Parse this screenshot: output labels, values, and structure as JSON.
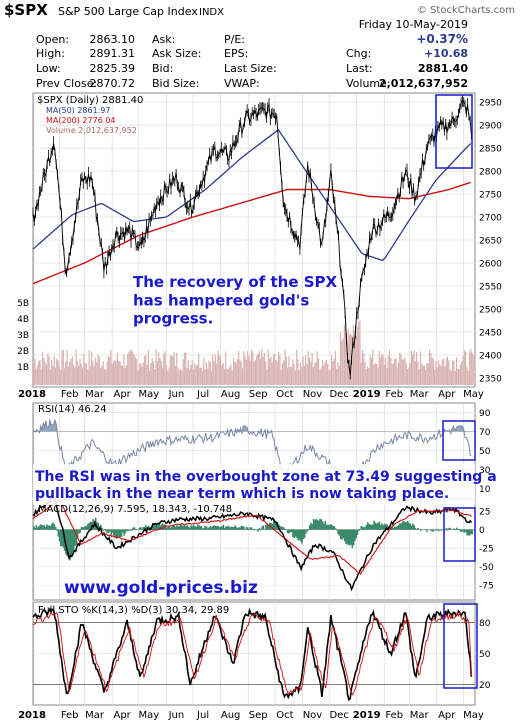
{
  "header": {
    "symbol": "$SPX",
    "name": "S&P 500 Large Cap Index",
    "exchange": "INDX",
    "watermark": "© StockCharts.com",
    "date": "Friday  10-May-2019",
    "change_pct": "+0.37%"
  },
  "quote": {
    "open_label": "Open:",
    "open": "2863.10",
    "high_label": "High:",
    "high": "2891.31",
    "low_label": "Low:",
    "low": "2825.39",
    "prev_label": "Prev Close:",
    "prev": "2870.72",
    "ask_label": "Ask:",
    "ask": "",
    "asksize_label": "Ask Size:",
    "asksize": "",
    "bid_label": "Bid:",
    "bid": "",
    "bidsize_label": "Bid Size:",
    "bidsize": "",
    "pe_label": "P/E:",
    "pe": "",
    "eps_label": "EPS:",
    "eps": "",
    "lastsize_label": "Last Size:",
    "lastsize": "",
    "vwap_label": "VWAP:",
    "vwap": "",
    "chg_label": "Chg:",
    "chg": "+10.68",
    "last_label": "Last:",
    "last": "2881.40",
    "volume_label": "Volume:",
    "volume": "2,012,637,952"
  },
  "legend": {
    "price": "$SPX (Daily) 2881.40",
    "ma50": "MA(50) 2861.97",
    "ma200": "MA(200) 2776.04",
    "volume": "Volume 2,012,637,952"
  },
  "annotations": {
    "price_note": "The recovery of the SPX\nhas hampered gold's\nprogress.",
    "rsi_note": "The RSI was in the overbought zone at 73.49 suggesting a\npullback in the near term which is now taking place.",
    "website": "www.gold-prices.biz"
  },
  "indicators": {
    "rsi_label": "RSI(14) 46.24",
    "macd_label": "MACD(12,26,9) 7.595, 18.343, -10.748",
    "sto_label": "Full STO %K(14,3) %D(3) 30.34, 29.89"
  },
  "colors": {
    "price": "#000000",
    "ma50": "#2d3a8c",
    "ma200": "#cc1111",
    "volume": "#d9b2b2",
    "rsi": "#7c86a8",
    "macd_signal": "#cc1111",
    "histogram": "#3a8a6c",
    "annotation_text": "#1a1acc",
    "box": "#1a1acc"
  },
  "chart_data": [
    {
      "type": "line",
      "title": "$SPX (Daily) 2881.40",
      "x_months": [
        "2018",
        "Feb",
        "Mar",
        "Apr",
        "May",
        "Jun",
        "Jul",
        "Aug",
        "Sep",
        "Oct",
        "Nov",
        "Dec",
        "2019",
        "Feb",
        "Mar",
        "Apr",
        "May"
      ],
      "ylim": [
        2330,
        2970
      ],
      "yticks": [
        2350,
        2400,
        2450,
        2500,
        2550,
        2600,
        2650,
        2700,
        2750,
        2800,
        2850,
        2900,
        2950
      ],
      "volume_ticks": [
        "5B",
        "4B",
        "3B",
        "2B",
        "1B"
      ],
      "series": [
        {
          "name": "$SPX",
          "x": [
            "2018-01-02",
            "2018-01-26",
            "2018-02-08",
            "2018-02-26",
            "2018-03-09",
            "2018-03-23",
            "2018-04-05",
            "2018-04-20",
            "2018-05-03",
            "2018-05-21",
            "2018-06-12",
            "2018-06-28",
            "2018-07-25",
            "2018-08-10",
            "2018-08-29",
            "2018-09-20",
            "2018-10-03",
            "2018-10-11",
            "2018-10-29",
            "2018-11-07",
            "2018-11-23",
            "2018-12-03",
            "2018-12-14",
            "2018-12-24",
            "2019-01-04",
            "2019-01-18",
            "2019-02-08",
            "2019-02-25",
            "2019-03-08",
            "2019-03-21",
            "2019-04-05",
            "2019-04-18",
            "2019-04-30",
            "2019-05-06",
            "2019-05-10"
          ],
          "values": [
            2695,
            2872,
            2581,
            2780,
            2786,
            2588,
            2662,
            2670,
            2630,
            2733,
            2786,
            2718,
            2846,
            2833,
            2914,
            2930,
            2925,
            2728,
            2641,
            2813,
            2633,
            2790,
            2600,
            2351,
            2532,
            2671,
            2707,
            2796,
            2743,
            2854,
            2892,
            2905,
            2945,
            2932,
            2881
          ]
        },
        {
          "name": "MA(50) 2861.97",
          "x": [
            "2018-01-02",
            "2018-02-15",
            "2018-03-20",
            "2018-04-25",
            "2018-06-01",
            "2018-07-15",
            "2018-08-25",
            "2018-10-05",
            "2018-11-05",
            "2018-12-10",
            "2019-01-07",
            "2019-01-31",
            "2019-02-28",
            "2019-03-31",
            "2019-04-30",
            "2019-05-10"
          ],
          "values": [
            2630,
            2705,
            2730,
            2690,
            2700,
            2760,
            2830,
            2890,
            2800,
            2700,
            2620,
            2605,
            2690,
            2780,
            2842,
            2862
          ]
        },
        {
          "name": "MA(200) 2776.04",
          "x": [
            "2018-01-02",
            "2018-03-01",
            "2018-05-01",
            "2018-07-01",
            "2018-09-01",
            "2018-10-15",
            "2018-12-01",
            "2019-01-15",
            "2019-03-01",
            "2019-04-15",
            "2019-05-10"
          ],
          "values": [
            2555,
            2600,
            2660,
            2700,
            2735,
            2760,
            2760,
            2745,
            2740,
            2760,
            2776
          ]
        }
      ]
    },
    {
      "type": "line",
      "title": "RSI(14) 46.24",
      "ylim": [
        0,
        100
      ],
      "yticks": [
        10,
        30,
        50,
        70,
        90
      ],
      "series": [
        {
          "name": "RSI(14)",
          "x": [
            "2018-01-02",
            "2018-01-26",
            "2018-02-08",
            "2018-03-09",
            "2018-04-02",
            "2018-05-21",
            "2018-07-25",
            "2018-08-29",
            "2018-09-28",
            "2018-10-11",
            "2018-11-07",
            "2018-12-24",
            "2019-01-25",
            "2019-02-25",
            "2019-03-21",
            "2019-04-18",
            "2019-04-30",
            "2019-05-10"
          ],
          "values": [
            70,
            82,
            28,
            58,
            35,
            60,
            64,
            72,
            66,
            23,
            55,
            18,
            55,
            66,
            63,
            72,
            73,
            46
          ]
        }
      ]
    },
    {
      "type": "line",
      "title": "MACD(12,26,9) 7.595, 18.343, -10.748",
      "ylim": [
        -95,
        40
      ],
      "yticks": [
        25,
        0,
        -25,
        -50,
        -75
      ],
      "series": [
        {
          "name": "MACD(12,26,9)",
          "x": [
            "2018-01-02",
            "2018-01-26",
            "2018-02-12",
            "2018-03-12",
            "2018-04-06",
            "2018-05-21",
            "2018-06-15",
            "2018-07-20",
            "2018-08-30",
            "2018-10-02",
            "2018-10-30",
            "2018-11-15",
            "2018-12-05",
            "2018-12-26",
            "2019-01-20",
            "2019-02-25",
            "2019-03-25",
            "2019-04-20",
            "2019-05-10"
          ],
          "values": [
            20,
            45,
            -38,
            8,
            -25,
            8,
            14,
            15,
            22,
            12,
            -52,
            -20,
            -30,
            -80,
            -20,
            30,
            22,
            28,
            7.6
          ]
        },
        {
          "name": "Signal",
          "x": [
            "2018-01-02",
            "2018-02-01",
            "2018-02-25",
            "2018-03-20",
            "2018-04-20",
            "2018-06-01",
            "2018-08-01",
            "2018-09-10",
            "2018-10-15",
            "2018-11-10",
            "2018-12-12",
            "2019-01-05",
            "2019-02-10",
            "2019-03-10",
            "2019-04-20",
            "2019-05-10"
          ],
          "values": [
            15,
            40,
            -20,
            -5,
            -15,
            5,
            12,
            20,
            -15,
            -40,
            -35,
            -60,
            5,
            25,
            26,
            18.3
          ]
        }
      ]
    },
    {
      "type": "line",
      "title": "Full STO %K(14,3) %D(3) 30.34, 29.89",
      "ylim": [
        0,
        100
      ],
      "yticks": [
        80,
        50,
        20
      ],
      "series": [
        {
          "name": "%K(14,3)",
          "x": [
            "2018-01-02",
            "2018-01-26",
            "2018-02-09",
            "2018-02-26",
            "2018-03-23",
            "2018-04-18",
            "2018-05-03",
            "2018-05-21",
            "2018-06-15",
            "2018-06-28",
            "2018-07-25",
            "2018-08-15",
            "2018-08-29",
            "2018-09-20",
            "2018-10-11",
            "2018-10-29",
            "2018-11-07",
            "2018-11-23",
            "2018-12-03",
            "2018-12-24",
            "2019-01-18",
            "2019-02-08",
            "2019-02-25",
            "2019-03-08",
            "2019-03-22",
            "2019-04-23",
            "2019-05-03",
            "2019-05-10"
          ],
          "values": [
            85,
            92,
            8,
            80,
            12,
            80,
            25,
            82,
            85,
            20,
            88,
            40,
            90,
            85,
            8,
            15,
            75,
            10,
            85,
            5,
            92,
            50,
            90,
            25,
            85,
            90,
            88,
            30
          ]
        },
        {
          "name": "%D(3)",
          "x": [
            "2018-01-02",
            "2018-01-29",
            "2018-02-12",
            "2018-03-01",
            "2018-03-26",
            "2018-04-20",
            "2018-05-07",
            "2018-05-24",
            "2018-06-18",
            "2018-07-02",
            "2018-07-27",
            "2018-08-17",
            "2018-09-04",
            "2018-09-24",
            "2018-10-15",
            "2018-11-01",
            "2018-11-09",
            "2018-11-27",
            "2018-12-05",
            "2018-12-27",
            "2019-01-22",
            "2019-02-12",
            "2019-02-27",
            "2019-03-12",
            "2019-03-26",
            "2019-04-25",
            "2019-05-07",
            "2019-05-10"
          ],
          "values": [
            80,
            90,
            12,
            75,
            15,
            75,
            28,
            78,
            82,
            24,
            85,
            44,
            87,
            82,
            12,
            18,
            70,
            14,
            80,
            8,
            88,
            54,
            86,
            28,
            82,
            88,
            80,
            29.9
          ]
        }
      ]
    }
  ]
}
